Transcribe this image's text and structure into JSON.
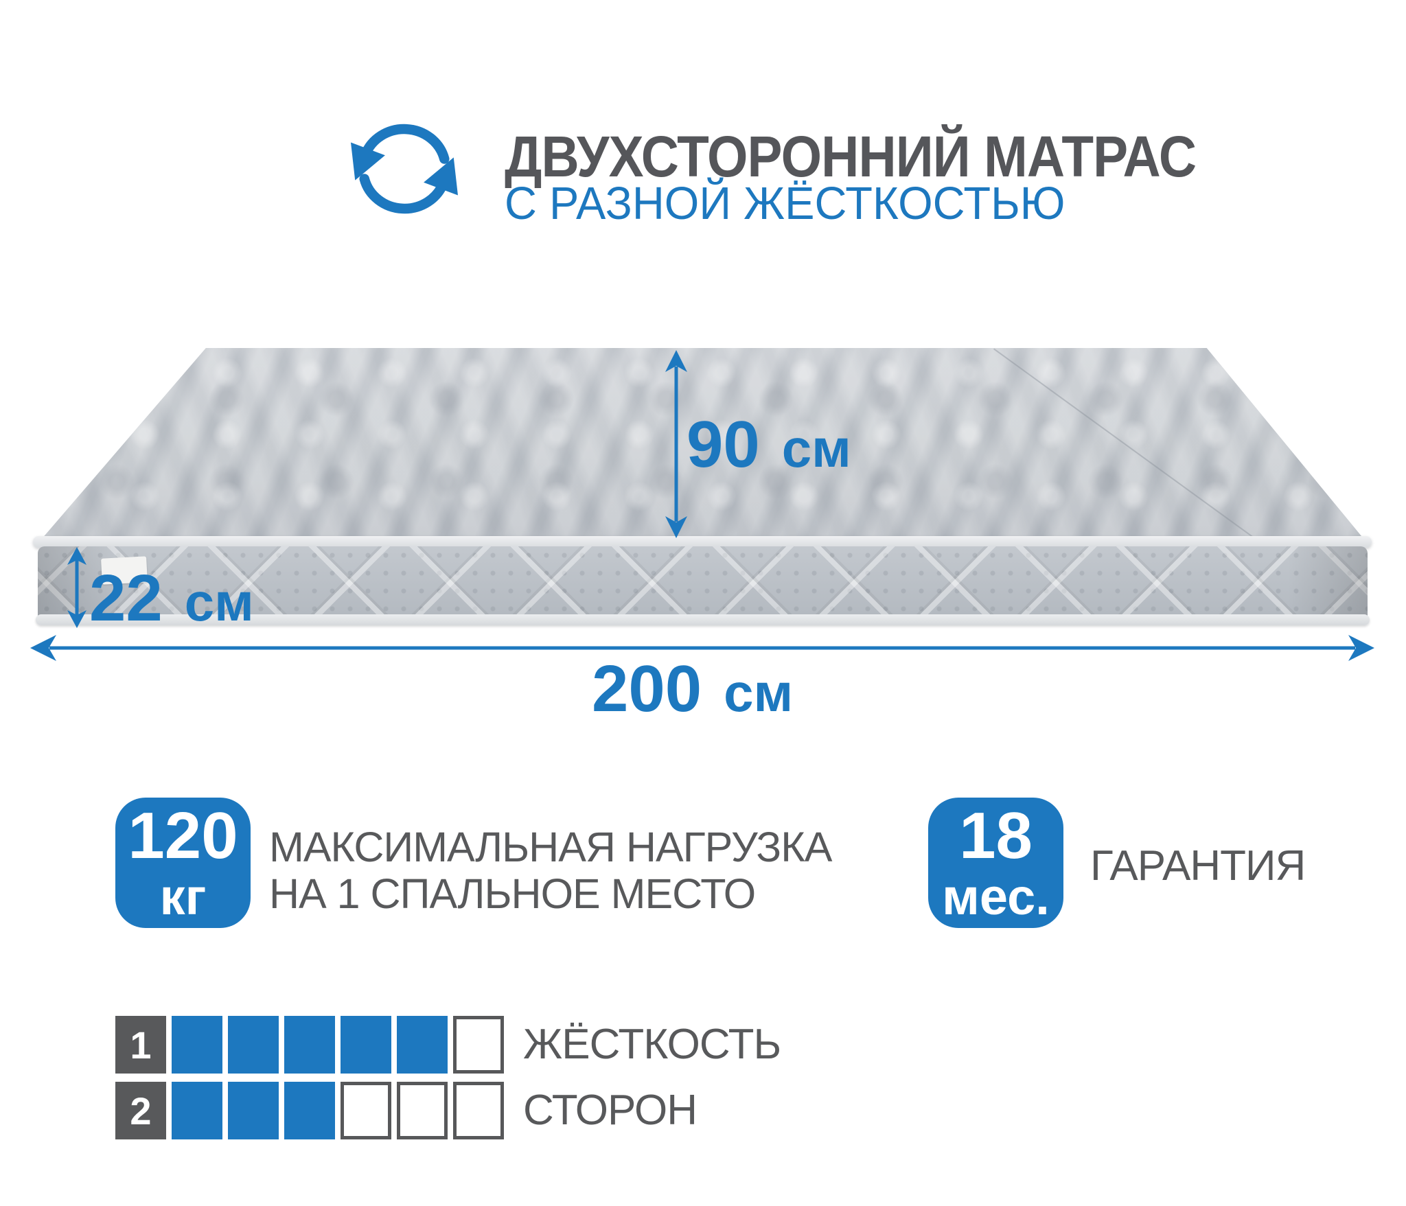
{
  "header": {
    "title_line1": "ДВУХСТОРОННИЙ МАТРАС",
    "title_line2": "С РАЗНОЙ ЖЁСТКОСТЬЮ",
    "icon": "rotate-arrows-icon"
  },
  "dimensions": {
    "depth": {
      "value": "90",
      "unit": "см"
    },
    "height": {
      "value": "22",
      "unit": "см"
    },
    "length": {
      "value": "200",
      "unit": "см"
    }
  },
  "badges": {
    "load": {
      "value": "120",
      "unit": "кг",
      "description_line1": "МАКСИМАЛЬНАЯ НАГРУЗКА",
      "description_line2": "НА 1 СПАЛЬНОЕ МЕСТО"
    },
    "warranty": {
      "value": "18",
      "unit": "мес.",
      "label": "ГАРАНТИЯ"
    }
  },
  "hardness": {
    "caption_line1": "ЖЁСТКОСТЬ",
    "caption_line2": "СТОРОН",
    "sides": [
      {
        "number": "1",
        "filled": 5,
        "total": 6
      },
      {
        "number": "2",
        "filled": 3,
        "total": 6
      }
    ]
  },
  "colors": {
    "accent_blue": "#1d78bf",
    "text_gray": "#58595b",
    "mattress_gray": "#bfc3c9"
  }
}
